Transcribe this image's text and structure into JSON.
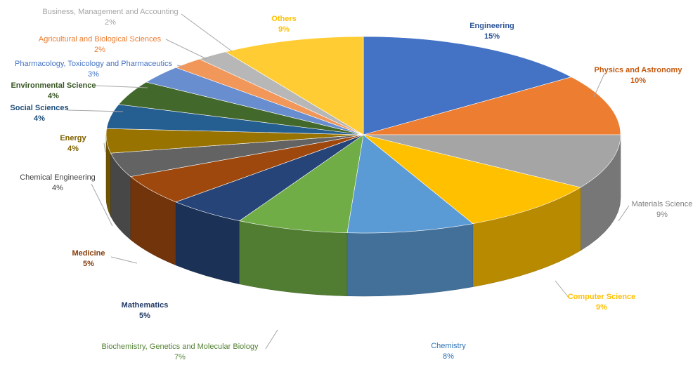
{
  "chart_data": {
    "type": "pie",
    "variant": "3d",
    "slices": [
      {
        "label": "Engineering",
        "value": 15,
        "display": "15%",
        "color": "#4472C4",
        "label_color": "#2F5597"
      },
      {
        "label": "Physics and Astronomy",
        "value": 10,
        "display": "10%",
        "color": "#ED7D31",
        "label_color": "#C55A11"
      },
      {
        "label": "Materials Science",
        "value": 9,
        "display": "9%",
        "color": "#A5A5A5",
        "label_color": "#7F7F7F"
      },
      {
        "label": "Computer Science",
        "value": 9,
        "display": "9%",
        "color": "#FFC000",
        "label_color": "#FFC000"
      },
      {
        "label": "Chemistry",
        "value": 8,
        "display": "8%",
        "color": "#5B9BD5",
        "label_color": "#2E75B6"
      },
      {
        "label": "Biochemistry, Genetics and Molecular Biology",
        "value": 7,
        "display": "7%",
        "color": "#70AD47",
        "label_color": "#548235"
      },
      {
        "label": "Mathematics",
        "value": 5,
        "display": "5%",
        "color": "#264478",
        "label_color": "#1F3864"
      },
      {
        "label": "Medicine",
        "value": 5,
        "display": "5%",
        "color": "#9E480E",
        "label_color": "#843C0C"
      },
      {
        "label": "Chemical Engineering",
        "value": 4,
        "display": "4%",
        "color": "#636363",
        "label_color": "#404040"
      },
      {
        "label": "Energy",
        "value": 4,
        "display": "4%",
        "color": "#997300",
        "label_color": "#7F6000"
      },
      {
        "label": "Social Sciences",
        "value": 4,
        "display": "4%",
        "color": "#255E91",
        "label_color": "#1F4E79"
      },
      {
        "label": "Environmental Science",
        "value": 4,
        "display": "4%",
        "color": "#43682B",
        "label_color": "#375623"
      },
      {
        "label": "Pharmacology, Toxicology and Pharmaceutics",
        "value": 3,
        "display": "3%",
        "color": "#698ED0",
        "label_color": "#4472C4"
      },
      {
        "label": "Agricultural and Biological Sciences",
        "value": 2,
        "display": "2%",
        "color": "#F1975A",
        "label_color": "#ED7D31"
      },
      {
        "label": "Business, Management and Accounting",
        "value": 2,
        "display": "2%",
        "color": "#B7B7B7",
        "label_color": "#A6A6A6"
      },
      {
        "label": "Others",
        "value": 9,
        "display": "9%",
        "color": "#FFCD33",
        "label_color": "#FFC000"
      }
    ]
  }
}
